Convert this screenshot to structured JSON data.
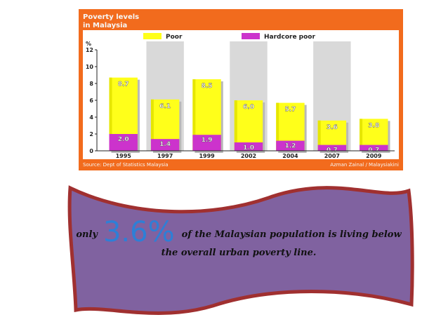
{
  "chart_data": {
    "type": "bar",
    "title": "Poverty levels in Malaysia",
    "ylabel": "%",
    "categories": [
      "1995",
      "1997",
      "1999",
      "2002",
      "2004",
      "2007",
      "2009"
    ],
    "series": [
      {
        "name": "Poor",
        "values": [
          8.7,
          6.1,
          8.5,
          6.0,
          5.7,
          3.6,
          3.8
        ],
        "labels": [
          "8.7",
          "6.1",
          "8.5",
          "6.0",
          "5.7",
          "3.6",
          "3.8"
        ],
        "color": "#ffff1a"
      },
      {
        "name": "Hardcore poor",
        "values": [
          2.0,
          1.4,
          1.9,
          1.0,
          1.2,
          0.7,
          0.7
        ],
        "labels": [
          "2.0",
          "1.4",
          "1.9",
          "1.0",
          "1.2",
          "0.7",
          "0.7"
        ],
        "color": "#cc33cc"
      }
    ],
    "y_ticks": [
      "0",
      "2",
      "4",
      "6",
      "8",
      "10",
      "12"
    ],
    "ylim": [
      0,
      12
    ],
    "grid": false,
    "legend": "top",
    "source": "Source: Dept of Statistics Malaysia",
    "credit": "Azman Zainal / Malaysiakini",
    "colors": {
      "frame": "#f26b1d",
      "plot_bg": "#ffffff",
      "stripe": "#d9d9d9",
      "title_text": "#f6f6f6"
    }
  },
  "banner": {
    "prefix": "only",
    "highlight": "3.6%",
    "text_line1": "of the Malaysian population is living below",
    "text_line2": "the overall urban poverty line.",
    "colors": {
      "fill": "#8062a0",
      "border": "#a03030",
      "highlight": "#2e7fd6"
    }
  }
}
